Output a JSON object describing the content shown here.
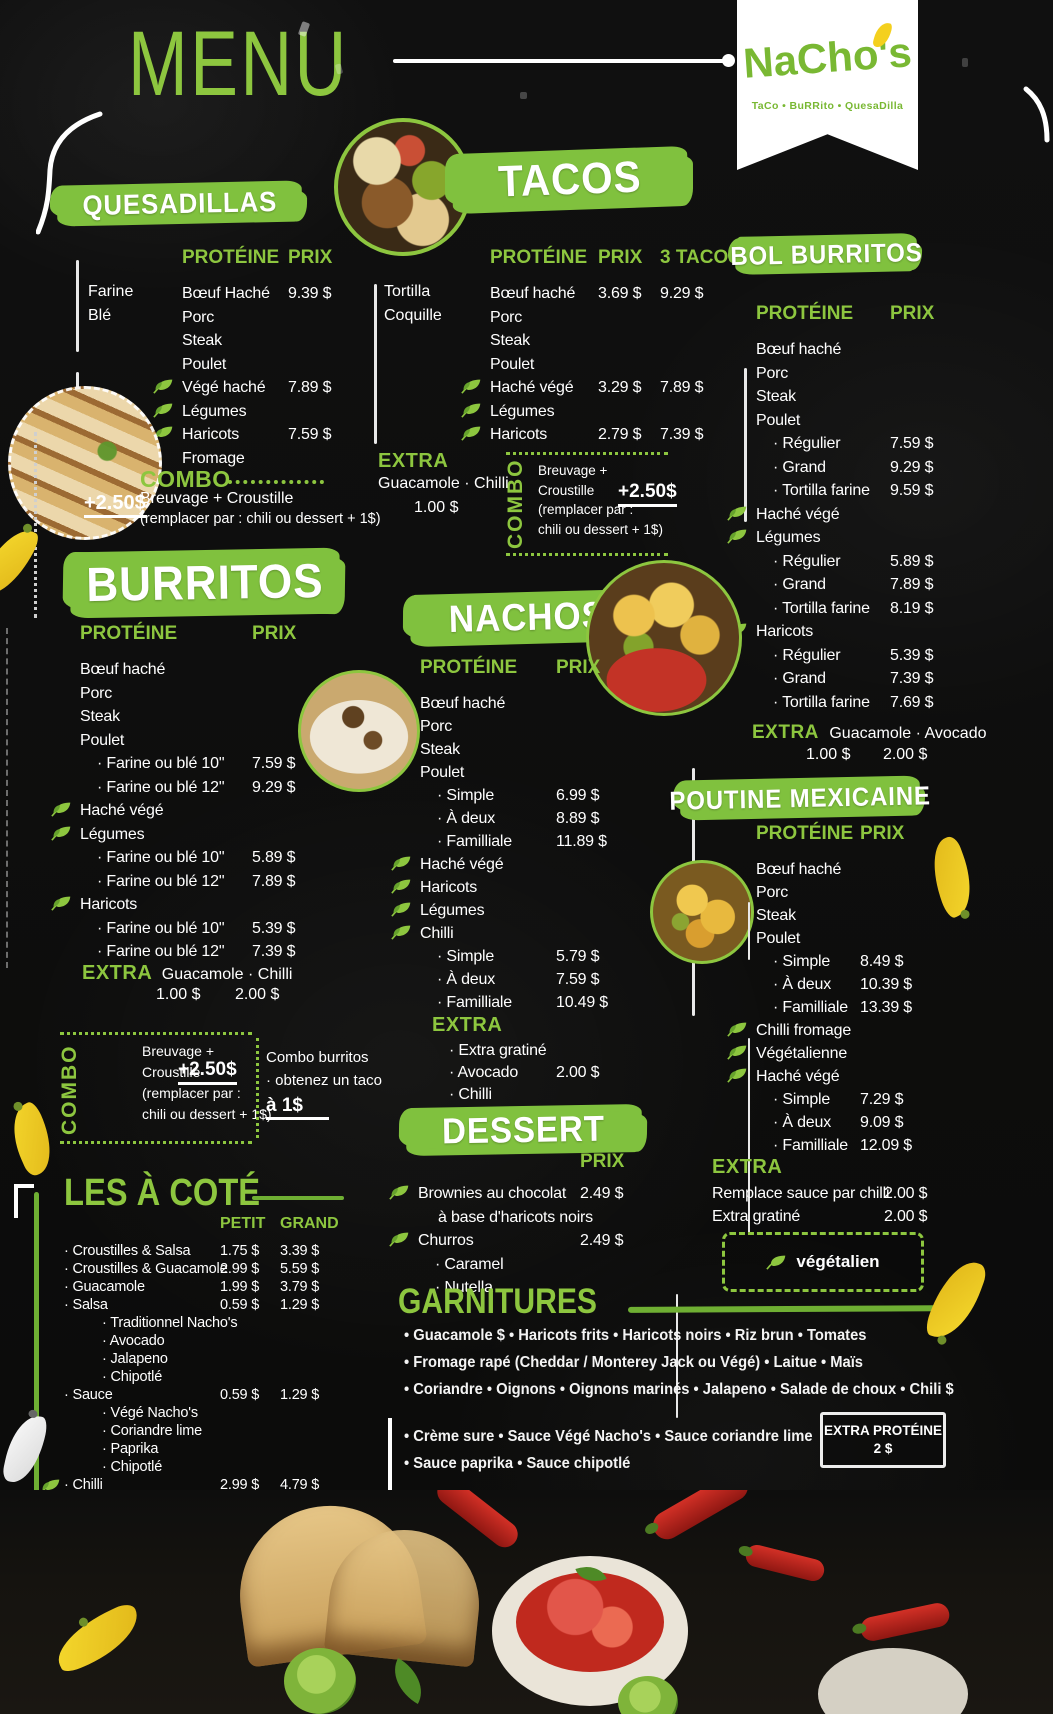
{
  "header": {
    "menu_title": "MENU",
    "logo_name": "NaCho's",
    "logo_tagline": "TaCo • BuRRito • QuesaDilla"
  },
  "colors": {
    "green": "#8dc63f",
    "banner_green": "#80c13e",
    "yellow": "#f4d01e",
    "background": "#0e0e0d"
  },
  "labels": {
    "protein": "PROTÉINE",
    "price": "PRIX",
    "three_tacos": "3 TACOS",
    "extra": "EXTRA",
    "combo": "COMBO",
    "petit": "PETIT",
    "grand": "GRAND"
  },
  "quesadillas": {
    "title": "QUESADILLAS",
    "bases": [
      "Farine",
      "Blé"
    ],
    "rows": [
      {
        "name": "Bœuf Haché",
        "prices": [
          "9.39 $"
        ]
      },
      {
        "name": "Porc"
      },
      {
        "name": "Steak"
      },
      {
        "name": "Poulet"
      },
      {
        "name": "Végé haché",
        "leaf": true,
        "prices": [
          "7.89 $"
        ]
      },
      {
        "name": "Légumes",
        "leaf": true
      },
      {
        "name": "Haricots",
        "leaf": true,
        "prices": [
          "7.59 $"
        ]
      },
      {
        "name": "Fromage"
      }
    ],
    "combo": {
      "label": "COMBO",
      "price": "+2.50$",
      "line1": "Breuvage + Croustille",
      "line2": "(remplacer par : chili ou dessert  + 1$)"
    }
  },
  "tacos": {
    "title": "TACOS",
    "bases": [
      "Tortilla",
      "Coquille"
    ],
    "rows": [
      {
        "name": "Bœuf haché",
        "prices": [
          "3.69 $",
          "9.29 $"
        ]
      },
      {
        "name": "Porc"
      },
      {
        "name": "Steak"
      },
      {
        "name": "Poulet"
      },
      {
        "name": "Haché végé",
        "leaf": true,
        "prices": [
          "3.29 $",
          "7.89 $"
        ]
      },
      {
        "name": "Légumes",
        "leaf": true
      },
      {
        "name": "Haricots",
        "leaf": true,
        "prices": [
          "2.79 $",
          "7.39 $"
        ]
      }
    ],
    "extra": {
      "label": "EXTRA",
      "items": "Guacamole · Chilli",
      "price": "1.00 $"
    },
    "combo": {
      "label": "COMBO",
      "price": "+2.50$",
      "lines": [
        "Breuvage +",
        "Croustille",
        "(remplacer par :",
        "chili ou dessert  + 1$)"
      ]
    }
  },
  "bol_burritos": {
    "title": "BOL BURRITOS",
    "rows": [
      {
        "name": "Bœuf haché"
      },
      {
        "name": "Porc"
      },
      {
        "name": "Steak"
      },
      {
        "name": "Poulet"
      },
      {
        "name": "Régulier",
        "ind": 1,
        "prices": [
          "7.59 $"
        ]
      },
      {
        "name": "Grand",
        "ind": 1,
        "prices": [
          "9.29 $"
        ]
      },
      {
        "name": "Tortilla farine",
        "ind": 1,
        "prices": [
          "9.59 $"
        ]
      },
      {
        "name": "Haché végé",
        "leaf": true
      },
      {
        "name": "Légumes",
        "leaf": true
      },
      {
        "name": "Régulier",
        "ind": 1,
        "prices": [
          "5.89 $"
        ]
      },
      {
        "name": "Grand",
        "ind": 1,
        "prices": [
          "7.89 $"
        ]
      },
      {
        "name": "Tortilla farine",
        "ind": 1,
        "prices": [
          "8.19 $"
        ]
      },
      {
        "name": "Haricots",
        "leaf": true
      },
      {
        "name": "Régulier",
        "ind": 1,
        "prices": [
          "5.39 $"
        ]
      },
      {
        "name": "Grand",
        "ind": 1,
        "prices": [
          "7.39 $"
        ]
      },
      {
        "name": "Tortilla farine",
        "ind": 1,
        "prices": [
          "7.69 $"
        ]
      }
    ],
    "extra": {
      "label": "EXTRA",
      "items": "Guacamole · Avocado",
      "price1": "1.00 $",
      "price2": "2.00 $"
    }
  },
  "burritos": {
    "title": "BURRITOS",
    "rows": [
      {
        "name": "Bœuf haché"
      },
      {
        "name": "Porc"
      },
      {
        "name": "Steak"
      },
      {
        "name": "Poulet"
      },
      {
        "name": "Farine ou blé 10''",
        "ind": 1,
        "prices": [
          "7.59 $"
        ]
      },
      {
        "name": "Farine ou blé 12''",
        "ind": 1,
        "prices": [
          "9.29 $"
        ]
      },
      {
        "name": "Haché végé",
        "leaf": true
      },
      {
        "name": "Légumes",
        "leaf": true
      },
      {
        "name": "Farine ou blé 10''",
        "ind": 1,
        "prices": [
          "5.89 $"
        ]
      },
      {
        "name": "Farine ou blé 12''",
        "ind": 1,
        "prices": [
          "7.89 $"
        ]
      },
      {
        "name": "Haricots",
        "leaf": true
      },
      {
        "name": "Farine ou blé 10''",
        "ind": 1,
        "prices": [
          "5.39 $"
        ]
      },
      {
        "name": "Farine ou blé 12''",
        "ind": 1,
        "prices": [
          "7.39 $"
        ]
      }
    ],
    "extra": {
      "label": "EXTRA",
      "items": "Guacamole · Chilli",
      "price1": "1.00 $",
      "price2": "2.00 $"
    },
    "combo": {
      "label": "COMBO",
      "price": "+2.50$",
      "lines": [
        "Breuvage +",
        "Croustille",
        "(remplacer par :",
        "chili ou dessert  + 1$)"
      ]
    },
    "combo_note": {
      "line1": "Combo burritos",
      "line2": "· obtenez un taco",
      "line3": "à 1$"
    }
  },
  "nachos": {
    "title": "NACHOS",
    "rows": [
      {
        "name": "Bœuf haché"
      },
      {
        "name": "Porc"
      },
      {
        "name": "Steak"
      },
      {
        "name": "Poulet"
      },
      {
        "name": "Simple",
        "ind": 1,
        "prices": [
          "6.99 $"
        ]
      },
      {
        "name": "À deux",
        "ind": 1,
        "prices": [
          "8.89 $"
        ]
      },
      {
        "name": "Familliale",
        "ind": 1,
        "prices": [
          "11.89 $"
        ]
      },
      {
        "name": "Haché végé",
        "leaf": true
      },
      {
        "name": "Haricots",
        "leaf": true
      },
      {
        "name": "Légumes",
        "leaf": true
      },
      {
        "name": "Chilli",
        "leaf": true
      },
      {
        "name": "Simple",
        "ind": 1,
        "prices": [
          "5.79 $"
        ]
      },
      {
        "name": "À deux",
        "ind": 1,
        "prices": [
          "7.59 $"
        ]
      },
      {
        "name": "Familliale",
        "ind": 1,
        "prices": [
          "10.49 $"
        ]
      }
    ],
    "extra_label": "EXTRA",
    "extra_rows": [
      {
        "name": "Extra gratiné",
        "ind": 1
      },
      {
        "name": "Avocado",
        "ind": 1,
        "prices": [
          "2.00 $"
        ]
      },
      {
        "name": "Chilli",
        "ind": 1
      }
    ]
  },
  "poutine": {
    "title": "POUTINE MEXICAINE",
    "rows": [
      {
        "name": "Bœuf haché"
      },
      {
        "name": "Porc"
      },
      {
        "name": "Steak"
      },
      {
        "name": "Poulet"
      },
      {
        "name": "Simple",
        "ind": 1,
        "prices": [
          "8.49 $"
        ]
      },
      {
        "name": "À deux",
        "ind": 1,
        "prices": [
          "10.39 $"
        ]
      },
      {
        "name": "Familliale",
        "ind": 1,
        "prices": [
          "13.39 $"
        ]
      },
      {
        "name": "Chilli fromage",
        "leaf": true
      },
      {
        "name": "Végétalienne",
        "leaf": true
      },
      {
        "name": "Haché végé",
        "leaf": true
      },
      {
        "name": "Simple",
        "ind": 1,
        "prices": [
          "7.29 $"
        ]
      },
      {
        "name": "À deux",
        "ind": 1,
        "prices": [
          "9.09 $"
        ]
      },
      {
        "name": "Familliale",
        "ind": 1,
        "prices": [
          "12.09 $"
        ]
      }
    ],
    "extra_label": "EXTRA",
    "extra_rows": [
      {
        "name": "Remplace sauce par chilli",
        "prices": [
          "2.00 $"
        ]
      },
      {
        "name": "Extra gratiné",
        "prices": [
          "2.00 $"
        ]
      }
    ],
    "badge": "végétalien"
  },
  "dessert": {
    "title": "DESSERT",
    "rows": [
      {
        "name": "Brownies au chocolat",
        "name2": "à base d'haricots noirs",
        "leaf": true,
        "prices": [
          "2.49 $"
        ]
      },
      {
        "name": "Churros",
        "leaf": true,
        "prices": [
          "2.49 $"
        ]
      },
      {
        "name": "Caramel",
        "ind": 1
      },
      {
        "name": "Nutella",
        "ind": 1
      }
    ]
  },
  "les_a_cote": {
    "title": "LES À COTÉ",
    "rows": [
      {
        "name": "Croustilles & Salsa",
        "ind": 1,
        "prices": [
          "1.75 $",
          "3.39 $"
        ]
      },
      {
        "name": "Croustilles & Guacamole",
        "ind": 1,
        "prices": [
          "2.99 $",
          "5.59 $"
        ]
      },
      {
        "name": "Guacamole",
        "ind": 1,
        "prices": [
          "1.99 $",
          "3.79 $"
        ]
      },
      {
        "name": "Salsa",
        "ind": 1,
        "prices": [
          "0.59 $",
          "1.29 $"
        ]
      },
      {
        "name": "Traditionnel Nacho's",
        "ind": 2
      },
      {
        "name": "Avocado",
        "ind": 2
      },
      {
        "name": "Jalapeno",
        "ind": 2
      },
      {
        "name": "Chipotlé",
        "ind": 2
      },
      {
        "name": "Sauce",
        "ind": 1,
        "prices": [
          "0.59 $",
          "1.29 $"
        ]
      },
      {
        "name": "Végé Nacho's",
        "ind": 2
      },
      {
        "name": "Coriandre lime",
        "ind": 2
      },
      {
        "name": "Paprika",
        "ind": 2
      },
      {
        "name": "Chipotlé",
        "ind": 2
      },
      {
        "name": "Chilli",
        "ind": 1,
        "leaf": true,
        "prices": [
          "2.99 $",
          "4.79 $"
        ]
      }
    ]
  },
  "garnitures": {
    "title": "GARNITURES",
    "lines": [
      "• Guacamole $ • Haricots frits  •  Haricots noirs  •  Riz brun • Tomates",
      "• Fromage rapé (Cheddar / Monterey Jack ou Végé) •  Laitue  • Maïs",
      "•  Coriandre •  Oignons •  Oignons marinés •  Jalapeno •  Salade de choux • Chili $",
      "• Crème sure • Sauce Végé Nacho's • Sauce coriandre lime",
      "• Sauce paprika • Sauce chipotlé"
    ],
    "extra_badge": {
      "line1": "EXTRA PROTÉINE",
      "line2": "2 $"
    }
  }
}
